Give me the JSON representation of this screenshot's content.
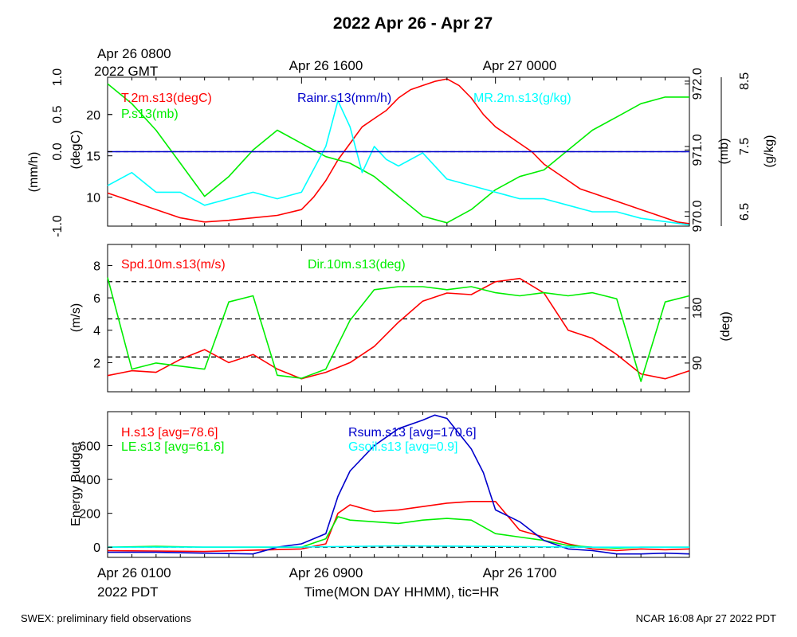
{
  "title": "2022 Apr 26 - Apr 27",
  "top_time_labels": {
    "left_line1": "Apr 26 0800",
    "left_line2": "2022 GMT",
    "mid": "Apr 26 1600",
    "right": "Apr 27 0000"
  },
  "bottom_time_labels": {
    "left_line1": "Apr 26 0100",
    "left_line2": "2022 PDT",
    "mid": "Apr 26 0900",
    "right": "Apr 26 1700"
  },
  "xlabel": "Time(MON DAY HHMM), tic=HR",
  "footer_left": "SWEX: preliminary field observations",
  "footer_right": "NCAR 16:08 Apr 27 2022 PDT",
  "colors": {
    "red": "#ff0000",
    "green": "#00ee00",
    "blue": "#0000cc",
    "cyan": "#00ffff",
    "black": "#000000"
  },
  "panel_labels": {
    "p1": {
      "t": "T.2m.s13(degC)",
      "p": "P.s13(mb)",
      "rain": "Rainr.s13(mm/h)",
      "mr": "MR.2m.s13(g/kg)"
    },
    "p2": {
      "spd": "Spd.10m.s13(m/s)",
      "dir": "Dir.10m.s13(deg)"
    },
    "p3": {
      "h": "H.s13 [avg=78.6]",
      "le": "LE.s13 [avg=61.6]",
      "rsum": "Rsum.s13 [avg=170.6]",
      "gsoil": "Gsoil.s13 [avg=0.9]"
    }
  },
  "axis_labels": {
    "p1_rain": "(mm/h)",
    "p1_t": "(degC)",
    "p1_p": "(mb)",
    "p1_mr": "(g/kg)",
    "p2_spd": "(m/s)",
    "p2_dir": "(deg)",
    "p3": "Energy Budget"
  },
  "chart_data": [
    {
      "type": "line",
      "x_unit": "hours from Apr 26 0100 PDT",
      "xlim": [
        0,
        24
      ],
      "axes": {
        "rain": {
          "ticks": [
            "1.0",
            "0.5",
            "0.0",
            "-1.0"
          ],
          "tick_values": [
            1.0,
            0.5,
            0.0,
            -1.0
          ],
          "ylim": [
            -1.0,
            1.0
          ]
        },
        "t": {
          "ticks": [
            "20",
            "15",
            "10"
          ],
          "tick_values": [
            20,
            15,
            10
          ],
          "ylim": [
            6.5,
            24.5
          ]
        },
        "p": {
          "ticks": [
            "972.0",
            "971.0",
            "970.0"
          ],
          "tick_values": [
            972.0,
            971.0,
            970.0
          ],
          "ylim": [
            969.85,
            972.1
          ]
        },
        "mr": {
          "ticks": [
            "8.5",
            "7.5",
            "6.5"
          ],
          "tick_values": [
            8.5,
            7.5,
            6.5
          ],
          "ylim": [
            6.28,
            8.56
          ]
        }
      },
      "series": [
        {
          "name": "T.2m.s13(degC)",
          "axis": "t",
          "color": "red",
          "x": [
            0,
            1,
            2,
            3,
            4,
            5,
            6,
            7,
            8,
            8.5,
            9,
            9.5,
            10,
            10.5,
            11,
            11.5,
            12,
            12.5,
            13,
            13.5,
            14,
            14.5,
            15,
            15.5,
            16,
            16.5,
            17,
            17.5,
            18,
            18.5,
            19,
            19.5,
            20,
            20.5,
            21,
            21.5,
            22,
            22.5,
            23,
            23.5,
            24
          ],
          "y": [
            10.5,
            9.5,
            8.5,
            7.5,
            7,
            7.2,
            7.5,
            7.8,
            8.5,
            10,
            12,
            14.5,
            16.5,
            18.5,
            19.5,
            20.5,
            22,
            23,
            23.5,
            24,
            24.3,
            23.5,
            22,
            20,
            18.5,
            17.5,
            16.5,
            15.5,
            14,
            13,
            12,
            11,
            10.5,
            10,
            9.5,
            9,
            8.5,
            8,
            7.5,
            7,
            6.8
          ]
        },
        {
          "name": "P.s13(mb)",
          "axis": "p",
          "color": "green",
          "x": [
            0,
            1,
            2,
            3,
            4,
            5,
            6,
            7,
            8,
            9,
            10,
            11,
            12,
            13,
            14,
            15,
            16,
            17,
            18,
            19,
            20,
            21,
            22,
            23,
            24
          ],
          "y": [
            972.0,
            971.7,
            971.3,
            970.8,
            970.3,
            970.6,
            971.0,
            971.3,
            971.1,
            970.9,
            970.8,
            970.6,
            970.3,
            970.0,
            969.9,
            970.1,
            970.4,
            970.6,
            970.7,
            971.0,
            971.3,
            971.5,
            971.7,
            971.8,
            971.8
          ]
        },
        {
          "name": "MR.2m.s13(g/kg)",
          "axis": "mr",
          "color": "cyan",
          "x": [
            0,
            1,
            2,
            3,
            4,
            5,
            6,
            7,
            8,
            9,
            9.5,
            10,
            10.5,
            11,
            11.5,
            12,
            13,
            14,
            15,
            16,
            17,
            18,
            19,
            20,
            21,
            22,
            23,
            24
          ],
          "y": [
            6.9,
            7.1,
            6.8,
            6.8,
            6.6,
            6.7,
            6.8,
            6.7,
            6.8,
            7.5,
            8.2,
            7.8,
            7.1,
            7.5,
            7.3,
            7.2,
            7.4,
            7.0,
            6.9,
            6.8,
            6.7,
            6.7,
            6.6,
            6.5,
            6.5,
            6.4,
            6.35,
            6.3
          ]
        },
        {
          "name": "Rainr.s13(mm/h)",
          "axis": "rain",
          "color": "blue",
          "x": [
            0,
            24
          ],
          "y": [
            0,
            0
          ]
        }
      ],
      "reference_lines": [
        {
          "axis": "rain",
          "value": 0.0,
          "style": "dashed"
        }
      ]
    },
    {
      "type": "line",
      "x_unit": "hours from Apr 26 0100 PDT",
      "xlim": [
        0,
        24
      ],
      "axes": {
        "spd": {
          "ticks": [
            "8",
            "6",
            "4",
            "2"
          ],
          "tick_values": [
            8,
            6,
            4,
            2
          ],
          "ylim": [
            0.2,
            9.3
          ]
        },
        "dir": {
          "ticks": [
            "180",
            "90"
          ],
          "tick_values": [
            180,
            90
          ],
          "ylim": [
            43,
            284
          ]
        }
      },
      "series": [
        {
          "name": "Spd.10m.s13(m/s)",
          "axis": "spd",
          "color": "red",
          "x": [
            0,
            1,
            2,
            3,
            4,
            5,
            6,
            7,
            8,
            9,
            10,
            11,
            12,
            13,
            14,
            15,
            16,
            17,
            18,
            19,
            20,
            21,
            22,
            23,
            24
          ],
          "y": [
            1.2,
            1.5,
            1.4,
            2.2,
            2.8,
            2.0,
            2.5,
            1.6,
            1.0,
            1.4,
            2.0,
            3.0,
            4.5,
            5.8,
            6.3,
            6.2,
            7.0,
            7.2,
            6.3,
            4.0,
            3.5,
            2.5,
            1.3,
            1.0,
            1.5
          ]
        },
        {
          "name": "Dir.10m.s13(deg)",
          "axis": "dir",
          "color": "green",
          "x": [
            0,
            1,
            2,
            3,
            4,
            5,
            6,
            7,
            8,
            9,
            10,
            11,
            12,
            13,
            14,
            15,
            16,
            17,
            18,
            19,
            20,
            21,
            22,
            23,
            24
          ],
          "y": [
            230,
            80,
            90,
            85,
            80,
            190,
            200,
            70,
            65,
            80,
            160,
            210,
            215,
            215,
            210,
            215,
            205,
            200,
            205,
            200,
            205,
            195,
            60,
            190,
            200
          ]
        }
      ],
      "reference_lines": [
        {
          "axis": "spd",
          "value": 7.0,
          "style": "dashed"
        },
        {
          "axis": "spd",
          "value": 4.7,
          "style": "dashed"
        },
        {
          "axis": "spd",
          "value": 2.35,
          "style": "dashed"
        }
      ]
    },
    {
      "type": "line",
      "x_unit": "hours from Apr 26 0100 PDT",
      "xlim": [
        0,
        24
      ],
      "axes": {
        "e": {
          "ticks": [
            "600",
            "400",
            "200",
            "0"
          ],
          "tick_values": [
            600,
            400,
            200,
            0
          ],
          "ylim": [
            -60,
            800
          ]
        }
      },
      "series": [
        {
          "name": "H.s13",
          "axis": "e",
          "color": "red",
          "x": [
            0,
            4,
            8,
            9,
            9.5,
            10,
            11,
            12,
            13,
            14,
            15,
            16,
            17,
            18,
            19,
            20,
            21,
            22,
            23,
            24
          ],
          "y": [
            -20,
            -25,
            -10,
            20,
            200,
            250,
            210,
            220,
            240,
            260,
            270,
            270,
            100,
            60,
            20,
            -10,
            -20,
            -10,
            -15,
            -10
          ]
        },
        {
          "name": "LE.s13",
          "axis": "e",
          "color": "green",
          "x": [
            0,
            2,
            4,
            8,
            9,
            9.5,
            10,
            11,
            12,
            13,
            14,
            15,
            16,
            17,
            18,
            19,
            20,
            21,
            22,
            23,
            24
          ],
          "y": [
            0,
            5,
            0,
            0,
            50,
            180,
            160,
            150,
            140,
            160,
            170,
            160,
            80,
            60,
            40,
            10,
            0,
            -5,
            0,
            0,
            0
          ]
        },
        {
          "name": "Rsum.s13",
          "axis": "e",
          "color": "blue",
          "x": [
            0,
            2,
            4,
            6,
            7,
            8,
            9,
            9.5,
            10,
            11,
            12,
            13,
            13.5,
            14,
            15,
            15.5,
            16,
            17,
            18,
            19,
            20,
            21,
            22,
            23,
            24
          ],
          "y": [
            -30,
            -30,
            -35,
            -40,
            0,
            20,
            80,
            300,
            450,
            600,
            700,
            750,
            780,
            760,
            580,
            440,
            220,
            150,
            40,
            -10,
            -20,
            -40,
            -40,
            -35,
            -40
          ]
        },
        {
          "name": "Gsoil.s13",
          "axis": "e",
          "color": "cyan",
          "x": [
            0,
            8,
            12,
            16,
            20,
            24
          ],
          "y": [
            0,
            1,
            8,
            5,
            0,
            0
          ]
        }
      ],
      "reference_lines": [
        {
          "axis": "e",
          "value": 0,
          "style": "dashed"
        }
      ]
    }
  ]
}
